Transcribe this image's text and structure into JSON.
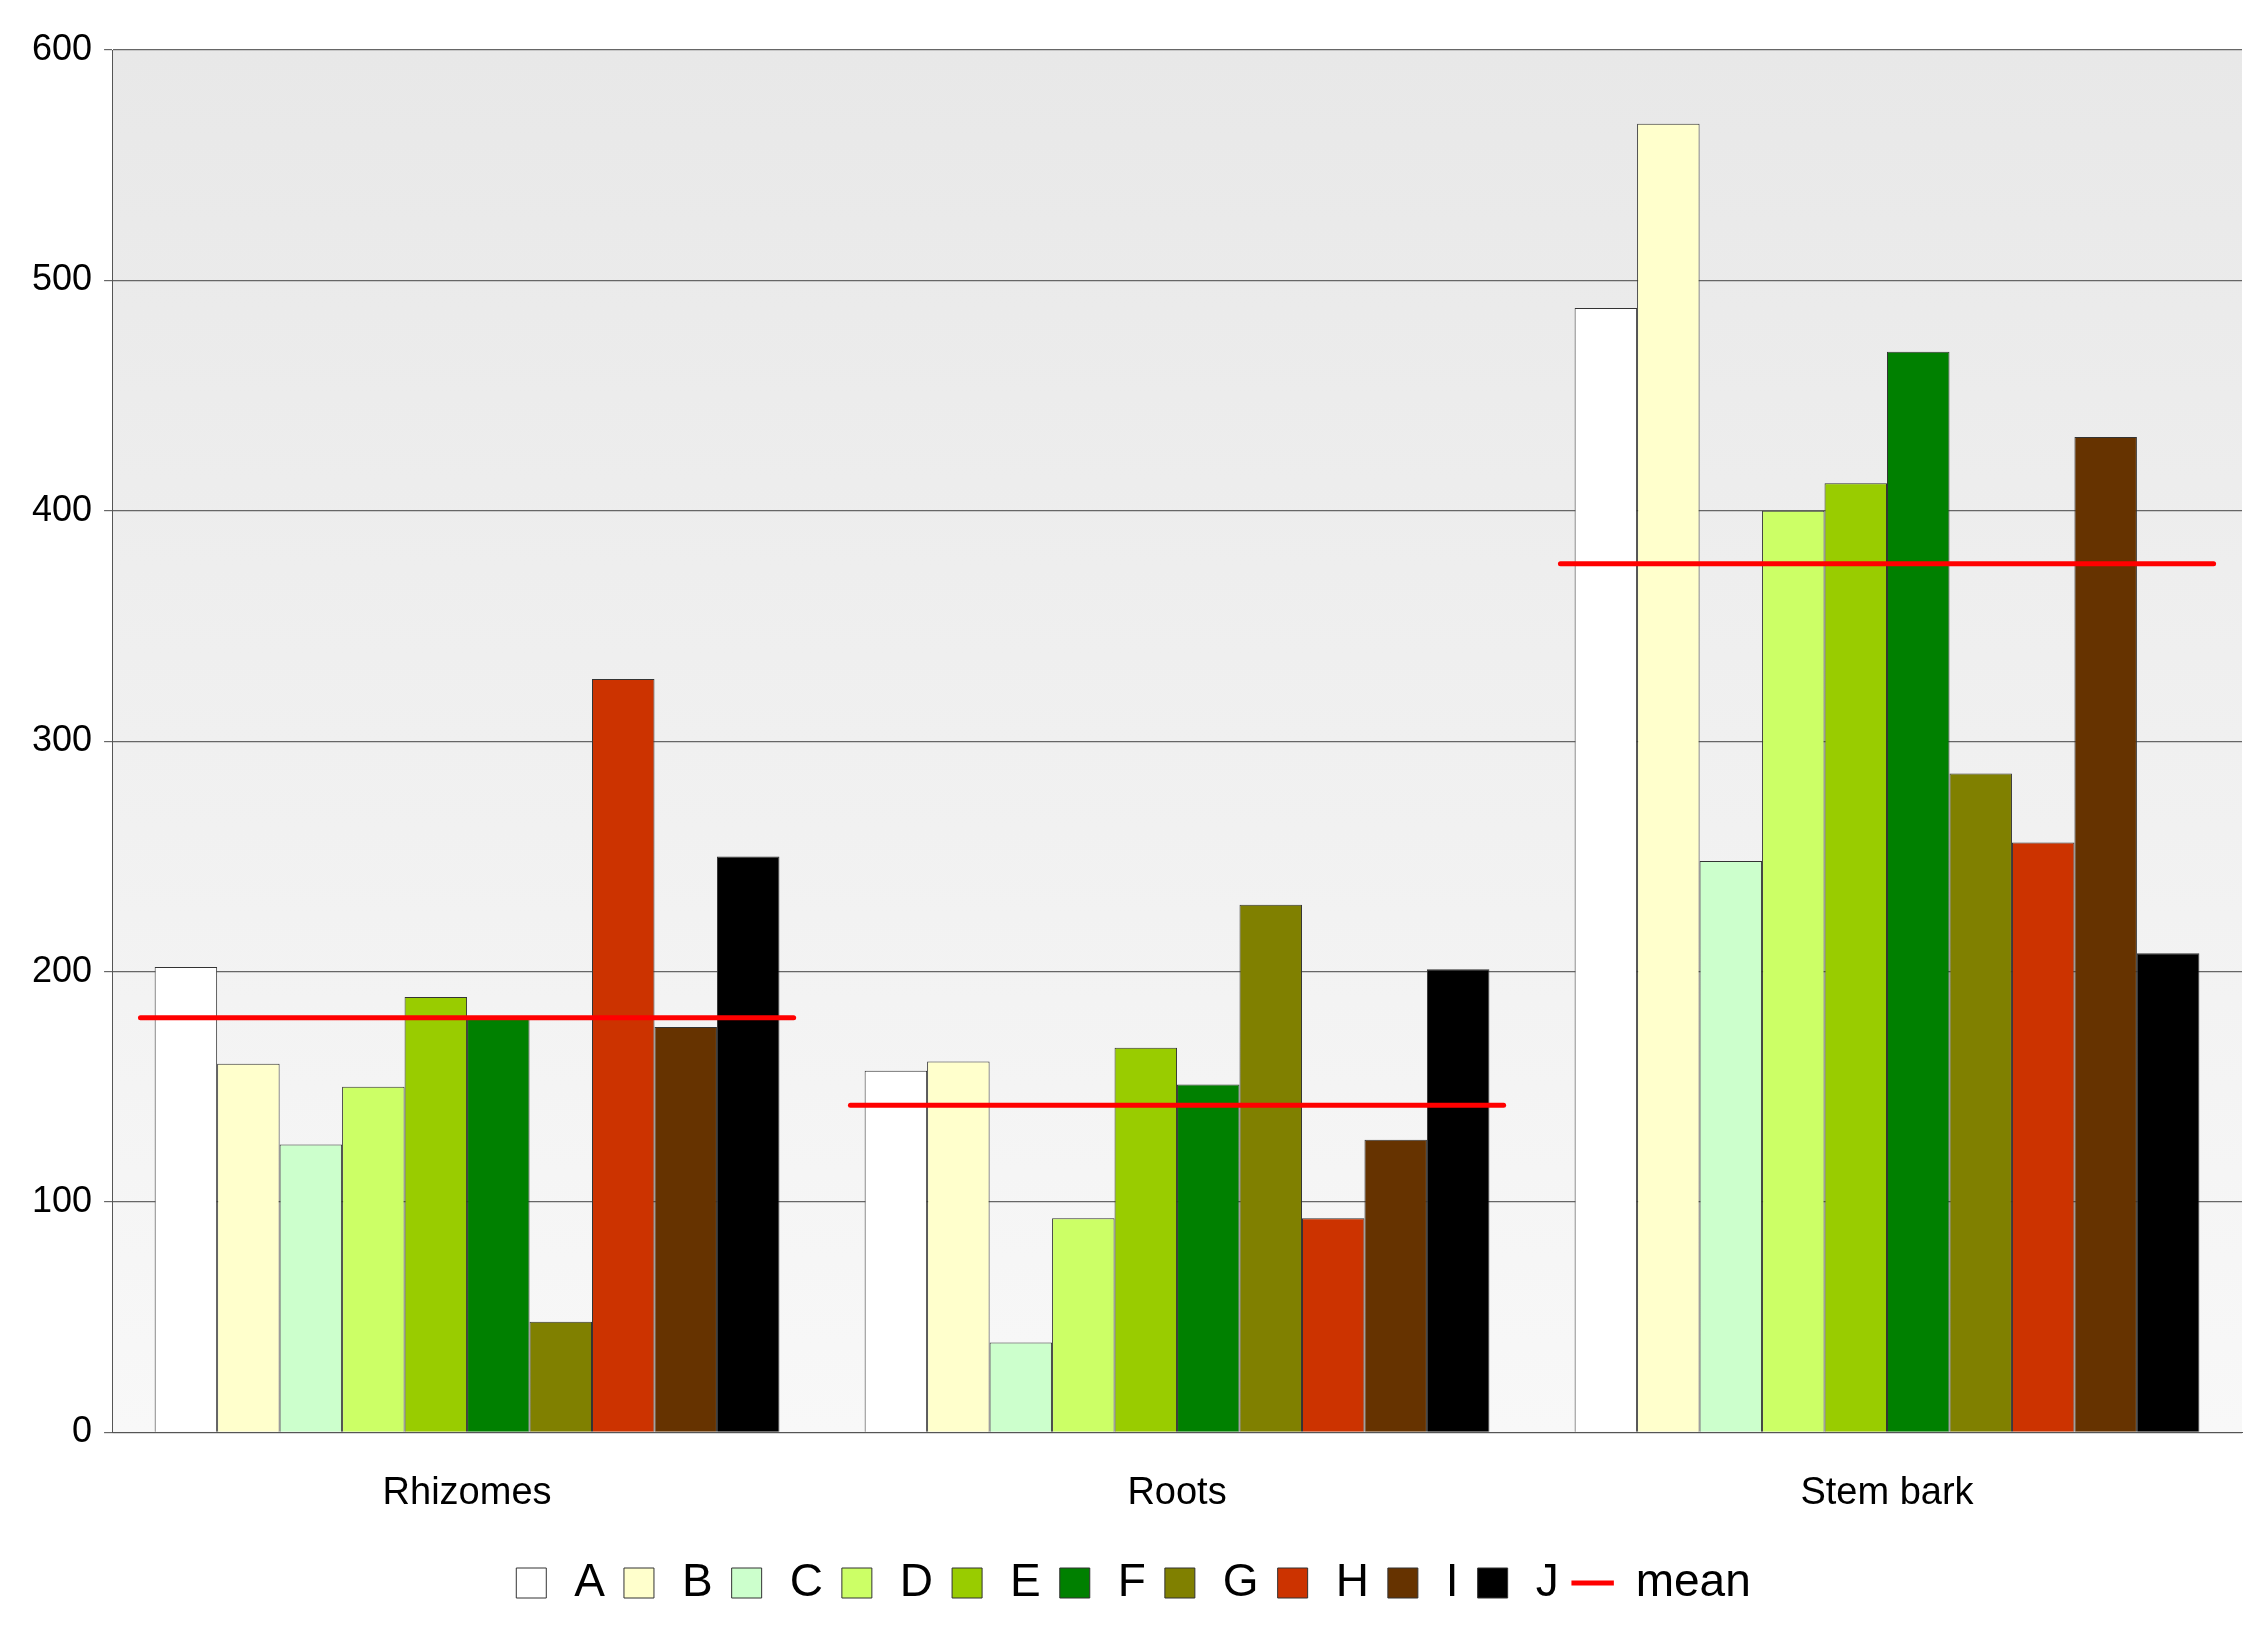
{
  "chart_data": {
    "type": "bar",
    "categories": [
      "Rhizomes",
      "Roots",
      "Stem bark"
    ],
    "series": [
      {
        "name": "A",
        "color": "#ffffff",
        "values": [
          202,
          157,
          488
        ]
      },
      {
        "name": "B",
        "color": "#ffffcc",
        "values": [
          160,
          161,
          568
        ]
      },
      {
        "name": "C",
        "color": "#ccffcc",
        "values": [
          125,
          39,
          248
        ]
      },
      {
        "name": "D",
        "color": "#ccff66",
        "values": [
          150,
          93,
          400
        ]
      },
      {
        "name": "E",
        "color": "#99cc00",
        "values": [
          189,
          167,
          412
        ]
      },
      {
        "name": "F",
        "color": "#008000",
        "values": [
          180,
          151,
          469
        ]
      },
      {
        "name": "G",
        "color": "#808000",
        "values": [
          48,
          229,
          286
        ]
      },
      {
        "name": "H",
        "color": "#cc3300",
        "values": [
          327,
          93,
          256
        ]
      },
      {
        "name": "I",
        "color": "#663300",
        "values": [
          176,
          127,
          432
        ]
      },
      {
        "name": "J",
        "color": "#000000",
        "values": [
          250,
          201,
          208
        ]
      }
    ],
    "ref_lines": [
      {
        "axis": "y",
        "value": 180,
        "label": "mean",
        "color": "#ff0000"
      },
      {
        "axis": "y",
        "value": 142,
        "color": "#ff0000"
      },
      {
        "axis": "y",
        "value": 377,
        "color": "#ff0000"
      }
    ],
    "ylim": [
      0,
      600
    ],
    "yticks": [
      0,
      100,
      200,
      300,
      400,
      500,
      600
    ],
    "grid": "y",
    "legend": "bottom"
  }
}
